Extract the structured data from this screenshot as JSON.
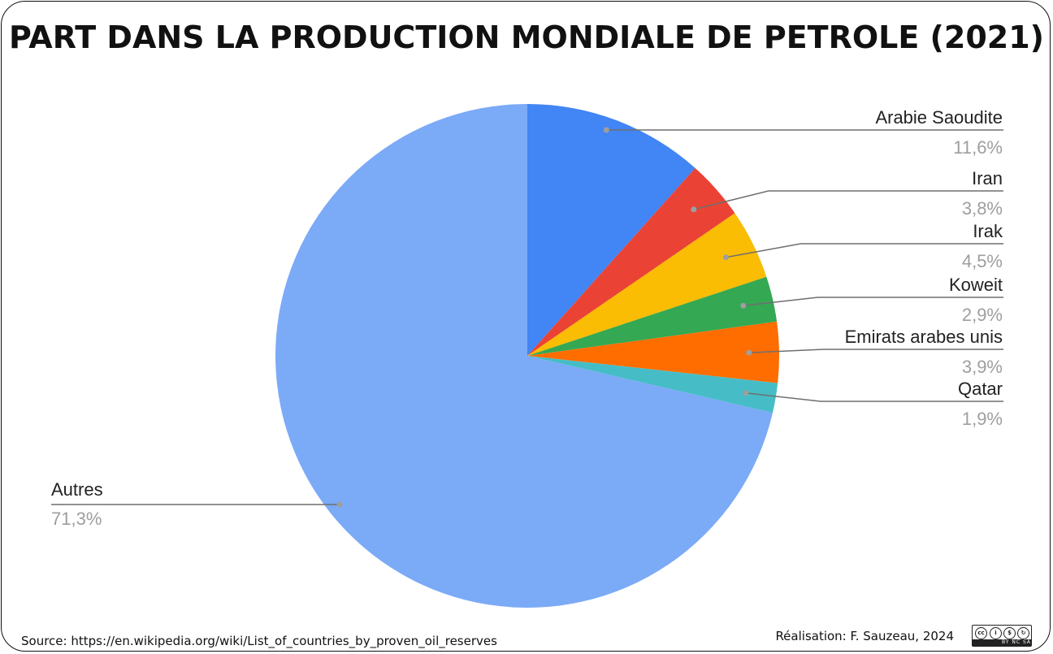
{
  "title": "PART DANS LA PRODUCTION MONDIALE DE PETROLE (2021)",
  "chart_data": {
    "type": "pie",
    "title": "PART DANS LA PRODUCTION MONDIALE DE PETROLE (2021)",
    "slices": [
      {
        "name": "Arabie Saoudite",
        "value": 11.6,
        "label": "11,6%",
        "color": "#4285f4"
      },
      {
        "name": "Iran",
        "value": 3.8,
        "label": "3,8%",
        "color": "#ea4335"
      },
      {
        "name": "Irak",
        "value": 4.5,
        "label": "4,5%",
        "color": "#fbbc04"
      },
      {
        "name": "Koweit",
        "value": 2.9,
        "label": "2,9%",
        "color": "#34a853"
      },
      {
        "name": "Emirats arabes unis",
        "value": 3.9,
        "label": "3,9%",
        "color": "#ff6d01"
      },
      {
        "name": "Qatar",
        "value": 1.9,
        "label": "1,9%",
        "color": "#46bdc6"
      },
      {
        "name": "Autres",
        "value": 71.3,
        "label": "71,3%",
        "color": "#7baaf7"
      }
    ]
  },
  "source": "Source: https://en.wikipedia.org/wiki/List_of_countries_by_proven_oil_reserves",
  "credit": "Réalisation: F. Sauzeau, 2024",
  "license": {
    "icon": "creative-commons-by-nc-sa-icon",
    "text": "BY NC SA"
  }
}
